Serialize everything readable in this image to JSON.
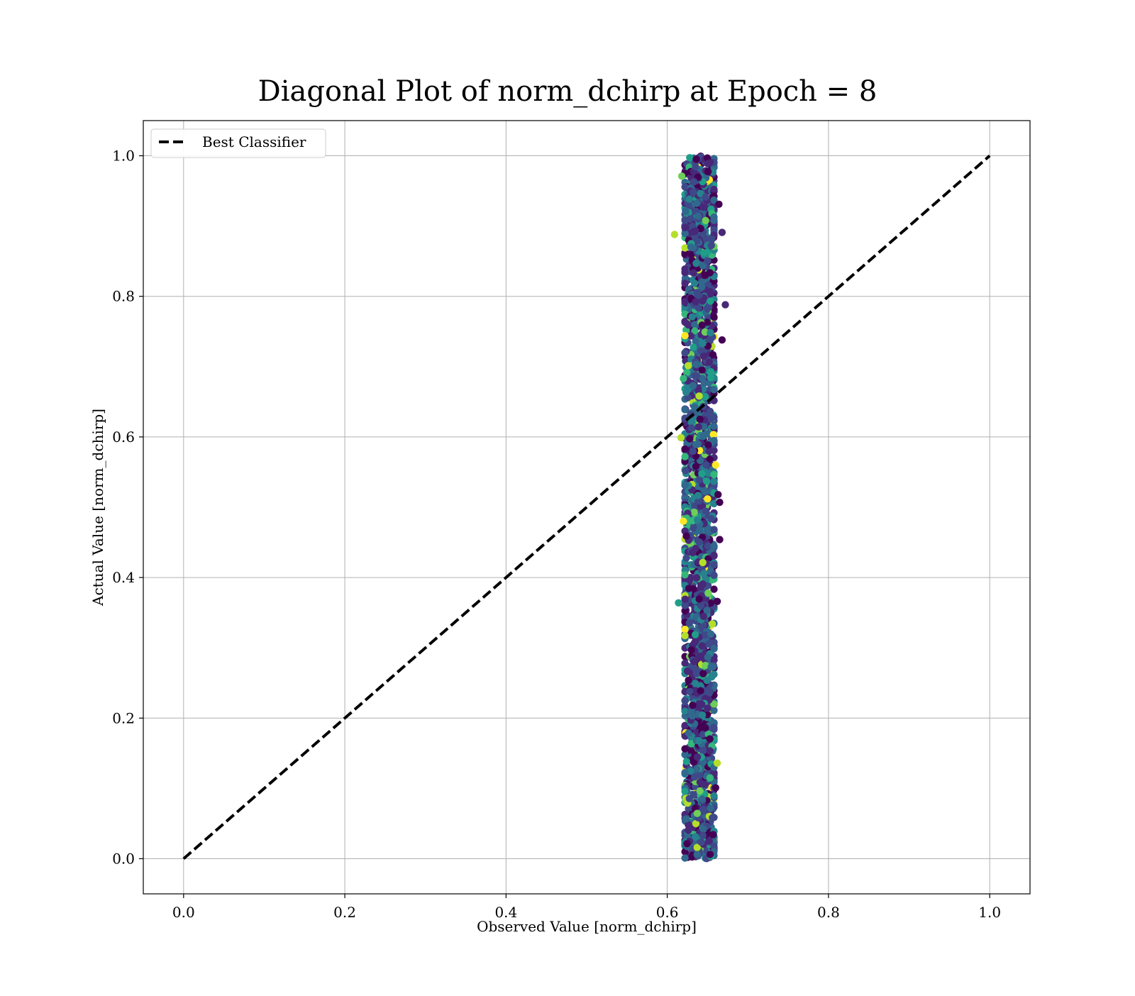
{
  "chart_data": {
    "type": "scatter",
    "title": "Diagonal Plot of norm_dchirp at Epoch = 8",
    "xlabel": "Observed Value [norm_dchirp]",
    "ylabel": "Actual Value [norm_dchirp]",
    "xlim": [
      -0.05,
      1.05
    ],
    "ylim": [
      -0.05,
      1.05
    ],
    "xticks": [
      "0.0",
      "0.2",
      "0.4",
      "0.6",
      "0.8",
      "1.0"
    ],
    "yticks": [
      "0.0",
      "0.2",
      "0.4",
      "0.6",
      "0.8",
      "1.0"
    ],
    "grid": true,
    "legend": {
      "placement": "upper-left",
      "entries": [
        "Best Classifier"
      ]
    },
    "reference_line": {
      "label": "Best Classifier",
      "style": "dashed",
      "color": "#000000",
      "x": [
        0.0,
        1.0
      ],
      "y": [
        0.0,
        1.0
      ]
    },
    "scatter": {
      "colormap": "viridis",
      "colors": [
        "#440154",
        "#482878",
        "#3e4989",
        "#31688e",
        "#26828e",
        "#1f9e89",
        "#35b779",
        "#6ece58",
        "#b5de2b",
        "#fde725"
      ],
      "cluster": {
        "x_center": 0.64,
        "x_spread": 0.012,
        "y_range": [
          0.0,
          1.0
        ]
      },
      "outliers": [
        {
          "x": 0.609,
          "y": 0.888,
          "color": "#b5de2b"
        },
        {
          "x": 0.668,
          "y": 0.891,
          "color": "#482878"
        },
        {
          "x": 0.672,
          "y": 0.788,
          "color": "#482878"
        },
        {
          "x": 0.668,
          "y": 0.738,
          "color": "#440154"
        },
        {
          "x": 0.617,
          "y": 0.599,
          "color": "#b5de2b"
        },
        {
          "x": 0.66,
          "y": 0.56,
          "color": "#fde725"
        },
        {
          "x": 0.665,
          "y": 0.507,
          "color": "#440154"
        },
        {
          "x": 0.62,
          "y": 0.48,
          "color": "#fde725"
        },
        {
          "x": 0.665,
          "y": 0.454,
          "color": "#440154"
        },
        {
          "x": 0.614,
          "y": 0.364,
          "color": "#1f9e89"
        },
        {
          "x": 0.662,
          "y": 0.136,
          "color": "#b5de2b"
        },
        {
          "x": 0.66,
          "y": 0.101,
          "color": "#440154"
        },
        {
          "x": 0.618,
          "y": 0.971,
          "color": "#6ece58"
        },
        {
          "x": 0.664,
          "y": 0.931,
          "color": "#440154"
        },
        {
          "x": 0.662,
          "y": 0.366,
          "color": "#440154"
        },
        {
          "x": 0.62,
          "y": 0.683,
          "color": "#35b779"
        },
        {
          "x": 0.622,
          "y": 0.572,
          "color": "#35b779"
        },
        {
          "x": 0.663,
          "y": 0.518,
          "color": "#440154"
        }
      ]
    }
  }
}
